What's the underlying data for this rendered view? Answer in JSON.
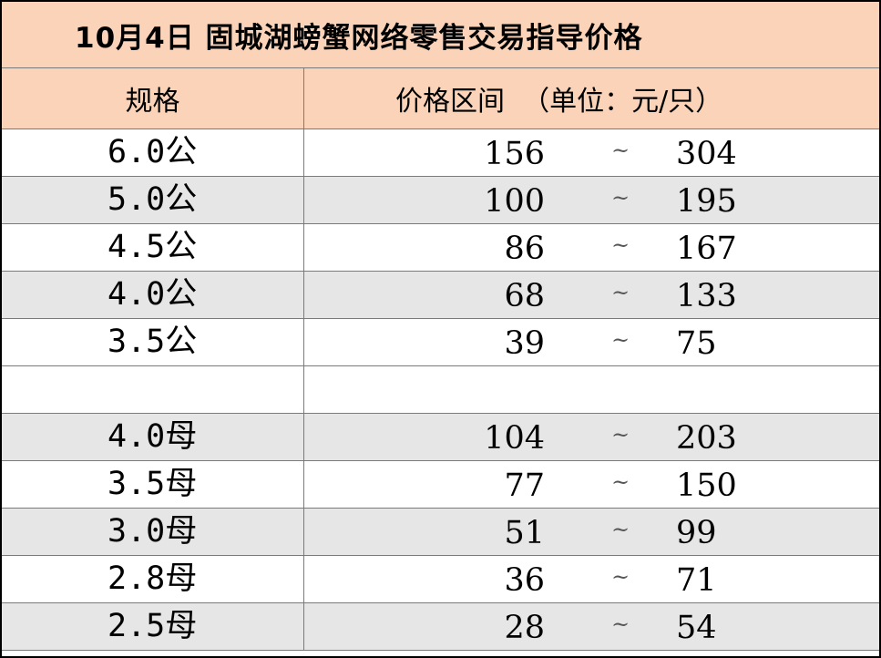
{
  "title": "10月4日 固城湖螃蟹网络零售交易指导价格",
  "header": {
    "spec_label": "规格",
    "price_label": "价格区间  （单位：元/只）"
  },
  "rows": [
    {
      "spec": "6.0公",
      "low": "156",
      "sep": "~",
      "high": "304"
    },
    {
      "spec": "5.0公",
      "low": "100",
      "sep": "~",
      "high": "195"
    },
    {
      "spec": "4.5公",
      "low": "86",
      "sep": "~",
      "high": "167"
    },
    {
      "spec": "4.0公",
      "low": "68",
      "sep": "~",
      "high": "133"
    },
    {
      "spec": "3.5公",
      "low": "39",
      "sep": "~",
      "high": "75"
    },
    {
      "spec": "",
      "low": "",
      "sep": "",
      "high": ""
    },
    {
      "spec": "4.0母",
      "low": "104",
      "sep": "~",
      "high": "203"
    },
    {
      "spec": "3.5母",
      "low": "77",
      "sep": "~",
      "high": "150"
    },
    {
      "spec": "3.0母",
      "low": "51",
      "sep": "~",
      "high": "99"
    },
    {
      "spec": "2.8母",
      "low": "36",
      "sep": "~",
      "high": "71"
    },
    {
      "spec": "2.5母",
      "low": "28",
      "sep": "~",
      "high": "54"
    }
  ],
  "colors": {
    "header_bg": "#fbd3b8",
    "row_shade": "#e6e6e6",
    "grid": "#7a7a7a"
  }
}
